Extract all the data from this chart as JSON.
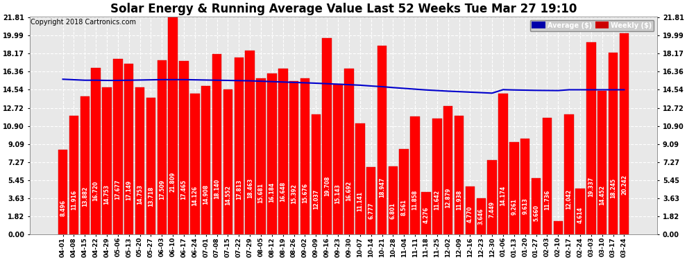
{
  "title": "Solar Energy & Running Average Value Last 52 Weeks Tue Mar 27 19:10",
  "copyright": "Copyright 2018 Cartronics.com",
  "bar_color": "#FF0000",
  "avg_line_color": "#0000CC",
  "background_color": "#FFFFFF",
  "plot_bg_color": "#E8E8E8",
  "grid_color": "#AAAAAA",
  "categories": [
    "04-01",
    "04-08",
    "04-15",
    "04-22",
    "04-29",
    "05-06",
    "05-13",
    "05-20",
    "05-27",
    "06-03",
    "06-10",
    "06-17",
    "06-24",
    "07-01",
    "07-08",
    "07-15",
    "07-22",
    "07-29",
    "08-05",
    "08-12",
    "08-19",
    "08-26",
    "09-02",
    "09-09",
    "09-16",
    "09-23",
    "09-30",
    "10-07",
    "10-14",
    "10-21",
    "10-28",
    "11-04",
    "11-11",
    "11-18",
    "11-25",
    "12-02",
    "12-09",
    "12-16",
    "12-23",
    "12-30",
    "01-06",
    "01-13",
    "01-20",
    "01-27",
    "02-03",
    "02-10",
    "02-17",
    "02-24",
    "03-03",
    "03-10",
    "03-17",
    "03-24"
  ],
  "bar_values": [
    8.496,
    11.916,
    13.882,
    16.72,
    14.753,
    17.677,
    17.149,
    14.753,
    13.718,
    17.509,
    21.809,
    17.465,
    14.126,
    14.908,
    18.14,
    14.552,
    17.813,
    18.463,
    15.681,
    16.184,
    16.648,
    15.392,
    15.676,
    12.037,
    19.708,
    15.143,
    16.692,
    11.141,
    6.777,
    18.947,
    6.801,
    8.561,
    11.858,
    4.276,
    11.642,
    12.879,
    11.938,
    4.77,
    3.646,
    7.449,
    14.174,
    9.261,
    9.613,
    5.66,
    11.736,
    1.293,
    12.042,
    4.614,
    19.337,
    14.452,
    18.245,
    20.242
  ],
  "avg_values": [
    15.6,
    15.55,
    15.5,
    15.5,
    15.48,
    15.48,
    15.5,
    15.52,
    15.54,
    15.56,
    15.56,
    15.56,
    15.54,
    15.52,
    15.5,
    15.48,
    15.46,
    15.44,
    15.4,
    15.36,
    15.32,
    15.28,
    15.24,
    15.2,
    15.15,
    15.1,
    15.05,
    15.0,
    14.92,
    14.85,
    14.76,
    14.68,
    14.6,
    14.52,
    14.46,
    14.4,
    14.35,
    14.3,
    14.25,
    14.2,
    14.55,
    14.52,
    14.5,
    14.48,
    14.47,
    14.46,
    14.54,
    14.54,
    14.54,
    14.54,
    14.54,
    14.54
  ],
  "yticks": [
    0.0,
    1.82,
    3.63,
    5.45,
    7.27,
    9.09,
    10.9,
    12.72,
    14.54,
    16.36,
    18.17,
    19.99,
    21.81
  ],
  "ylim_max": 21.81,
  "legend_labels": [
    "Average ($)",
    "Weekly ($)"
  ],
  "legend_avg_bg": "#0000AA",
  "legend_weekly_bg": "#CC0000",
  "legend_text_color": "#FFFFFF",
  "title_fontsize": 12,
  "copyright_fontsize": 7,
  "bar_label_fontsize": 5.5
}
